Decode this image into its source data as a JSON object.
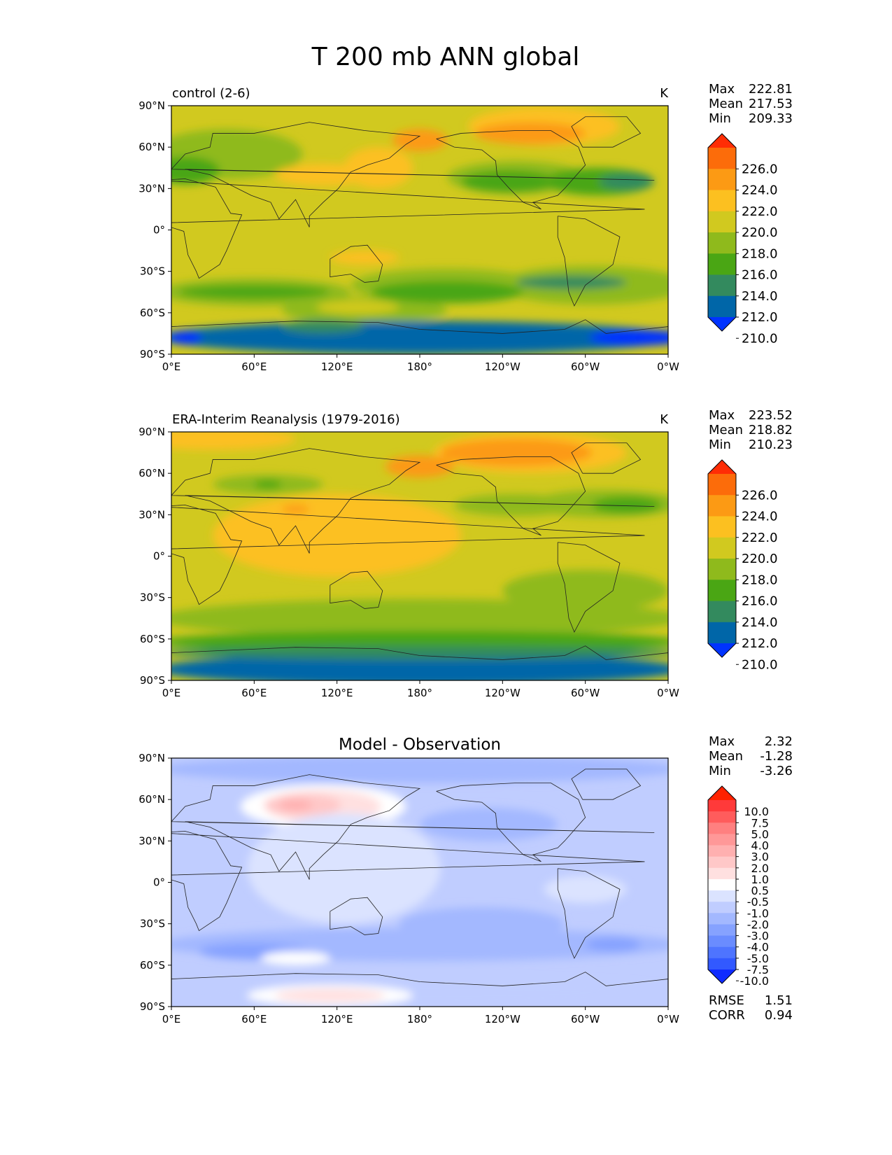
{
  "title": "T 200 mb ANN global",
  "chart_data": [
    {
      "type": "map-contour",
      "panel": "control",
      "left_title": "control (2-6)",
      "center_title": "",
      "units": "K",
      "stats": {
        "max_label": "Max",
        "mean_label": "Mean",
        "min_label": "Min",
        "max": "222.81",
        "mean": "217.53",
        "min": "209.33"
      },
      "colorbar_ticks": [
        "226.0",
        "224.0",
        "222.0",
        "220.0",
        "218.0",
        "216.0",
        "214.0",
        "212.0",
        "210.0"
      ],
      "x_ticks": [
        "0°E",
        "60°E",
        "120°E",
        "180°",
        "120°W",
        "60°W",
        "0°W"
      ],
      "y_ticks": [
        "90°N",
        "60°N",
        "30°N",
        "0°",
        "30°S",
        "60°S",
        "90°S"
      ],
      "lon_range": [
        0,
        360
      ],
      "lat_range": [
        -90,
        90
      ],
      "base_level": "218.0"
    },
    {
      "type": "map-contour",
      "panel": "reference",
      "left_title": "ERA-Interim Reanalysis (1979-2016)",
      "center_title": "",
      "units": "K",
      "stats": {
        "max_label": "Max",
        "mean_label": "Mean",
        "min_label": "Min",
        "max": "223.52",
        "mean": "218.82",
        "min": "210.23"
      },
      "colorbar_ticks": [
        "226.0",
        "224.0",
        "222.0",
        "220.0",
        "218.0",
        "216.0",
        "214.0",
        "212.0",
        "210.0"
      ],
      "x_ticks": [
        "0°E",
        "60°E",
        "120°E",
        "180°",
        "120°W",
        "60°W",
        "0°W"
      ],
      "y_ticks": [
        "90°N",
        "60°N",
        "30°N",
        "0°",
        "30°S",
        "60°S",
        "90°S"
      ],
      "lon_range": [
        0,
        360
      ],
      "lat_range": [
        -90,
        90
      ],
      "base_level": "218.0"
    },
    {
      "type": "map-contour",
      "panel": "difference",
      "left_title": "",
      "center_title": "Model - Observation",
      "units": "",
      "stats": {
        "max_label": "Max",
        "mean_label": "Mean",
        "min_label": "Min",
        "max": "2.32",
        "mean": "-1.28",
        "min": "-3.26"
      },
      "colorbar_ticks": [
        "10.0",
        "7.5",
        "5.0",
        "4.0",
        "3.0",
        "2.0",
        "1.0",
        "0.5",
        "-0.5",
        "-1.0",
        "-2.0",
        "-3.0",
        "-4.0",
        "-5.0",
        "-7.5",
        "-10.0"
      ],
      "x_ticks": [
        "0°E",
        "60°E",
        "120°E",
        "180°",
        "120°W",
        "60°W",
        "0°W"
      ],
      "y_ticks": [
        "90°N",
        "60°N",
        "30°N",
        "0°",
        "30°S",
        "60°S",
        "90°S"
      ],
      "lon_range": [
        0,
        360
      ],
      "lat_range": [
        -90,
        90
      ],
      "base_level": "-1.0",
      "metrics": {
        "rmse_label": "RMSE",
        "rmse": "1.51",
        "corr_label": "CORR",
        "corr": "0.94"
      }
    }
  ],
  "colors": {
    "temp_levels": [
      "#0033ff",
      "#0066a8",
      "#338a5e",
      "#4aa614",
      "#8fba1c",
      "#d1c91f",
      "#fcc020",
      "#fc9a14",
      "#fc6c0a",
      "#ff2d05"
    ],
    "diff_levels": [
      "#0f2bff",
      "#3259ff",
      "#4e74ff",
      "#6a8cff",
      "#86a2ff",
      "#a3b8ff",
      "#c0cdff",
      "#dbe3ff",
      "#ffffff",
      "#ffe0e0",
      "#ffc8c8",
      "#ffb0b0",
      "#ff9898",
      "#ff8080",
      "#ff5c5c",
      "#ff3a3a",
      "#ff2200"
    ]
  }
}
